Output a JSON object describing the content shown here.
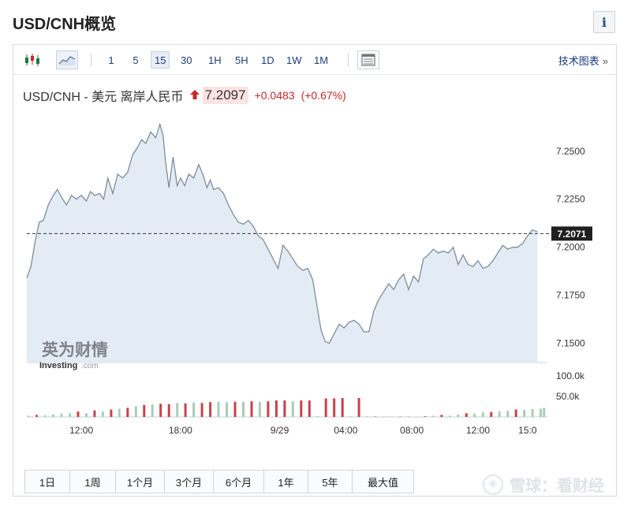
{
  "page": {
    "title": "USD/CNH概览",
    "info_label": "i"
  },
  "toolbar": {
    "intervals": [
      "1",
      "5",
      "15",
      "30",
      "1H",
      "5H",
      "1D",
      "1W",
      "1M"
    ],
    "active_interval": "15",
    "tech_label": "技术图表",
    "tech_chevron": "»"
  },
  "quote": {
    "symbol": "USD/CNH - 美元 离岸人民币",
    "direction_icon": "up-arrow-icon",
    "price": "7.2097",
    "change": "+0.0483",
    "change_pct": "(+0.67%)",
    "up_color": "#c62828"
  },
  "logo": {
    "cn": "英为财情",
    "en": "Investing",
    "suffix": ".com"
  },
  "ranges": [
    "1日",
    "1周",
    "1个月",
    "3个月",
    "6个月",
    "1年",
    "5年",
    "最大值"
  ],
  "watermark": {
    "text": "雪球：看财经"
  },
  "chart_data": {
    "type": "area",
    "price_axis": {
      "ylim": [
        7.14,
        7.27
      ],
      "ticks": [
        "7.2500",
        "7.2250",
        "7.2000",
        "7.1750",
        "7.1500"
      ],
      "tick_values": [
        7.25,
        7.225,
        7.2,
        7.175,
        7.15
      ]
    },
    "current_marker": {
      "value": 7.2071,
      "label": "7.2071"
    },
    "x_tick_labels": [
      "12:00",
      "18:00",
      "9/29",
      "04:00",
      "08:00",
      "12:00",
      "15:0"
    ],
    "x_tick_hours": [
      12,
      18,
      24,
      28,
      32,
      36,
      39
    ],
    "x_range_hours": [
      8.7,
      40.2
    ],
    "series": [
      {
        "x_hours": [
          8.7,
          8.95,
          9.2,
          9.45,
          9.7,
          10.0,
          10.3,
          10.55,
          10.8,
          11.1,
          11.4,
          11.7,
          12.0,
          12.3,
          12.55,
          12.8,
          13.1,
          13.35,
          13.6,
          13.9,
          14.2,
          14.5,
          14.8,
          15.1,
          15.4,
          15.65,
          15.9,
          16.2,
          16.5,
          16.75,
          16.95,
          17.1,
          17.3,
          17.55,
          17.8,
          18.0,
          18.25,
          18.5,
          18.8,
          19.1,
          19.35,
          19.6,
          19.8,
          20.0,
          20.3,
          20.6,
          20.9,
          21.2,
          21.5,
          21.8,
          22.1,
          22.4,
          22.7,
          23.0,
          23.3,
          23.6,
          23.9,
          24.2,
          24.5,
          24.8,
          25.1,
          25.4,
          25.7,
          26.0,
          26.25,
          26.5,
          26.75,
          27.0,
          27.3,
          27.6,
          27.9,
          28.2,
          28.5,
          28.8,
          29.1,
          29.4,
          29.7,
          30.0,
          30.3,
          30.6,
          30.9,
          31.2,
          31.5,
          31.8,
          32.1,
          32.4,
          32.7,
          33.0,
          33.3,
          33.6,
          33.9,
          34.2,
          34.5,
          34.8,
          35.1,
          35.4,
          35.7,
          36.0,
          36.3,
          36.6,
          36.9,
          37.2,
          37.5,
          37.8,
          38.1,
          38.4,
          38.7,
          39.0,
          39.3,
          39.6
        ],
        "values": [
          7.184,
          7.19,
          7.203,
          7.213,
          7.214,
          7.222,
          7.227,
          7.23,
          7.226,
          7.222,
          7.227,
          7.225,
          7.227,
          7.224,
          7.229,
          7.227,
          7.228,
          7.225,
          7.236,
          7.228,
          7.238,
          7.236,
          7.239,
          7.248,
          7.252,
          7.256,
          7.254,
          7.26,
          7.257,
          7.264,
          7.258,
          7.244,
          7.231,
          7.247,
          7.232,
          7.236,
          7.232,
          7.238,
          7.236,
          7.243,
          7.238,
          7.231,
          7.235,
          7.23,
          7.231,
          7.228,
          7.222,
          7.217,
          7.213,
          7.212,
          7.214,
          7.211,
          7.206,
          7.204,
          7.199,
          7.194,
          7.189,
          7.201,
          7.198,
          7.194,
          7.19,
          7.188,
          7.189,
          7.183,
          7.17,
          7.157,
          7.151,
          7.15,
          7.155,
          7.16,
          7.158,
          7.161,
          7.162,
          7.16,
          7.156,
          7.156,
          7.167,
          7.173,
          7.177,
          7.181,
          7.178,
          7.183,
          7.186,
          7.178,
          7.185,
          7.182,
          7.194,
          7.196,
          7.199,
          7.197,
          7.198,
          7.197,
          7.2,
          7.191,
          7.196,
          7.191,
          7.19,
          7.193,
          7.189,
          7.19,
          7.193,
          7.197,
          7.201,
          7.199,
          7.2,
          7.2,
          7.202,
          7.206,
          7.209,
          7.208
        ]
      }
    ],
    "volume_axis": {
      "ticks": [
        "100.0k",
        "50.0k"
      ],
      "tick_values": [
        100000,
        50000
      ],
      "ymax": 115000
    },
    "volume": [
      {
        "x": 8.8,
        "v": 3000,
        "up": true
      },
      {
        "x": 9.3,
        "v": 5000,
        "up": false
      },
      {
        "x": 9.8,
        "v": 4000,
        "up": true
      },
      {
        "x": 10.3,
        "v": 6000,
        "up": true
      },
      {
        "x": 10.8,
        "v": 8000,
        "up": true
      },
      {
        "x": 11.3,
        "v": 9000,
        "up": true
      },
      {
        "x": 11.8,
        "v": 13000,
        "up": false
      },
      {
        "x": 12.3,
        "v": 9000,
        "up": true
      },
      {
        "x": 12.8,
        "v": 16000,
        "up": false
      },
      {
        "x": 13.3,
        "v": 13000,
        "up": true
      },
      {
        "x": 13.8,
        "v": 18000,
        "up": false
      },
      {
        "x": 14.3,
        "v": 20000,
        "up": true
      },
      {
        "x": 14.8,
        "v": 22000,
        "up": false
      },
      {
        "x": 15.3,
        "v": 26000,
        "up": true
      },
      {
        "x": 15.8,
        "v": 29000,
        "up": false
      },
      {
        "x": 16.3,
        "v": 30000,
        "up": true
      },
      {
        "x": 16.8,
        "v": 32000,
        "up": false
      },
      {
        "x": 17.3,
        "v": 31000,
        "up": false
      },
      {
        "x": 17.8,
        "v": 34000,
        "up": true
      },
      {
        "x": 18.3,
        "v": 33000,
        "up": false
      },
      {
        "x": 18.8,
        "v": 35000,
        "up": true
      },
      {
        "x": 19.3,
        "v": 34000,
        "up": false
      },
      {
        "x": 19.8,
        "v": 36000,
        "up": false
      },
      {
        "x": 20.3,
        "v": 37000,
        "up": true
      },
      {
        "x": 20.8,
        "v": 36000,
        "up": true
      },
      {
        "x": 21.3,
        "v": 37000,
        "up": false
      },
      {
        "x": 21.8,
        "v": 37000,
        "up": true
      },
      {
        "x": 22.3,
        "v": 38000,
        "up": false
      },
      {
        "x": 22.8,
        "v": 37000,
        "up": true
      },
      {
        "x": 23.3,
        "v": 38000,
        "up": false
      },
      {
        "x": 23.8,
        "v": 40000,
        "up": false
      },
      {
        "x": 24.3,
        "v": 40000,
        "up": false
      },
      {
        "x": 24.8,
        "v": 38000,
        "up": true
      },
      {
        "x": 25.3,
        "v": 40000,
        "up": false
      },
      {
        "x": 25.8,
        "v": 40000,
        "up": false
      },
      {
        "x": 26.3,
        "v": 2000,
        "up": true
      },
      {
        "x": 26.8,
        "v": 45000,
        "up": false
      },
      {
        "x": 27.3,
        "v": 45000,
        "up": false
      },
      {
        "x": 27.8,
        "v": 46000,
        "up": false
      },
      {
        "x": 28.3,
        "v": 1500,
        "up": true
      },
      {
        "x": 28.8,
        "v": 46000,
        "up": false
      },
      {
        "x": 29.3,
        "v": 1500,
        "up": true
      },
      {
        "x": 29.8,
        "v": 1000,
        "up": false
      },
      {
        "x": 30.3,
        "v": 1000,
        "up": true
      },
      {
        "x": 30.8,
        "v": 1000,
        "up": true
      },
      {
        "x": 31.3,
        "v": 1000,
        "up": false
      },
      {
        "x": 31.8,
        "v": 1500,
        "up": true
      },
      {
        "x": 32.3,
        "v": 1000,
        "up": true
      },
      {
        "x": 32.8,
        "v": 1500,
        "up": false
      },
      {
        "x": 33.3,
        "v": 3000,
        "up": true
      },
      {
        "x": 33.8,
        "v": 5000,
        "up": false
      },
      {
        "x": 34.3,
        "v": 3000,
        "up": true
      },
      {
        "x": 34.8,
        "v": 6000,
        "up": true
      },
      {
        "x": 35.3,
        "v": 9000,
        "up": false
      },
      {
        "x": 35.8,
        "v": 8000,
        "up": true
      },
      {
        "x": 36.3,
        "v": 11000,
        "up": true
      },
      {
        "x": 36.8,
        "v": 12000,
        "up": false
      },
      {
        "x": 37.3,
        "v": 14000,
        "up": true
      },
      {
        "x": 37.8,
        "v": 15000,
        "up": true
      },
      {
        "x": 38.3,
        "v": 18000,
        "up": false
      },
      {
        "x": 38.8,
        "v": 17000,
        "up": true
      },
      {
        "x": 39.3,
        "v": 19000,
        "up": true
      },
      {
        "x": 39.8,
        "v": 20000,
        "up": true
      },
      {
        "x": 40.0,
        "v": 22000,
        "up": true
      }
    ],
    "colors": {
      "line": "#7d8d99",
      "area": "#e3ecf5",
      "up_volume": "#a9cdb6",
      "down_volume": "#c9414a",
      "marker_bg": "#1f1f1f"
    }
  }
}
